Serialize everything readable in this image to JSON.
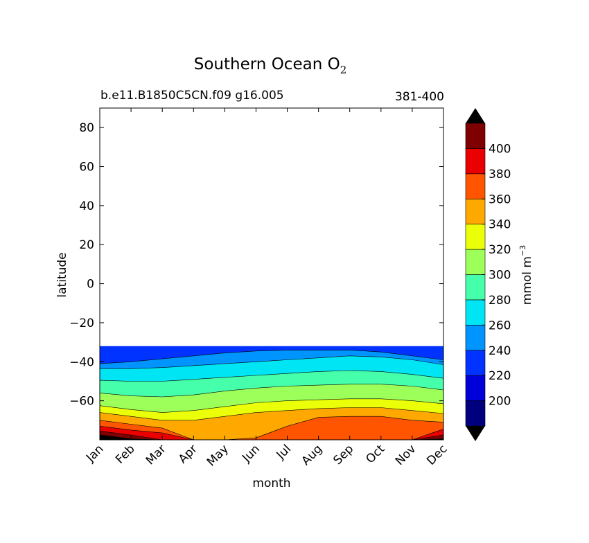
{
  "chart_data": {
    "type": "heatmap",
    "title": "Southern Ocean O",
    "title_subscript": "2",
    "subtitle_left": "b.e11.B1850C5CN.f09 g16.005",
    "subtitle_right": "381-400",
    "xlabel": "month",
    "ylabel": "latitude",
    "x_categories": [
      "Jan",
      "Feb",
      "Mar",
      "Apr",
      "May",
      "Jun",
      "Jul",
      "Aug",
      "Sep",
      "Oct",
      "Nov",
      "Dec"
    ],
    "y_ticks": [
      80,
      60,
      40,
      20,
      0,
      -20,
      -40,
      -60
    ],
    "y_tick_labels": [
      "80",
      "60",
      "40",
      "20",
      "0",
      "−20",
      "−40",
      "−60"
    ],
    "ylim": [
      -80,
      90
    ],
    "data_lat_range": [
      -79,
      -32
    ],
    "grid": false,
    "colorbar": {
      "label": "mmol m",
      "label_exponent": "−3",
      "levels": [
        180,
        200,
        220,
        240,
        260,
        280,
        300,
        320,
        340,
        360,
        380,
        400,
        420
      ],
      "tick_values": [
        200,
        220,
        240,
        260,
        280,
        300,
        320,
        340,
        360,
        380,
        400
      ],
      "tick_labels": [
        "200",
        "220",
        "240",
        "260",
        "280",
        "300",
        "320",
        "340",
        "360",
        "380",
        "400"
      ],
      "colors": [
        "#00007f",
        "#0000d9",
        "#0033ff",
        "#0094ff",
        "#00e5f3",
        "#46ffaa",
        "#9dff59",
        "#ebff08",
        "#ffa800",
        "#ff5500",
        "#ea0000",
        "#7f0000"
      ],
      "under_color": "#000000",
      "over_color": "#000000",
      "extend": "both"
    },
    "contour_boundaries": [
      {
        "level": 240,
        "lats": [
          -41,
          -40,
          -38.5,
          -37,
          -35.5,
          -34.5,
          -34,
          -34,
          -34,
          -35,
          -37,
          -39
        ]
      },
      {
        "level": 260,
        "lats": [
          -43.5,
          -43.5,
          -43,
          -42,
          -41,
          -40,
          -39,
          -38,
          -37,
          -37.5,
          -39,
          -41.5
        ]
      },
      {
        "level": 280,
        "lats": [
          -49.5,
          -50,
          -50,
          -49,
          -48,
          -47,
          -46,
          -45,
          -44.5,
          -45,
          -46.5,
          -48.5
        ]
      },
      {
        "level": 300,
        "lats": [
          -56,
          -57.5,
          -58,
          -57,
          -55,
          -53.5,
          -52.5,
          -52,
          -51.5,
          -51.5,
          -52.5,
          -54.5
        ]
      },
      {
        "level": 320,
        "lats": [
          -62.5,
          -64.5,
          -66,
          -65,
          -63,
          -61,
          -60,
          -59.5,
          -59,
          -59,
          -60,
          -61.5
        ]
      },
      {
        "level": 340,
        "lats": [
          -66,
          -68,
          -70,
          -70,
          -68,
          -66,
          -65,
          -64,
          -63.5,
          -63.5,
          -65,
          -66.5
        ]
      },
      {
        "level": 360,
        "lats": [
          -70,
          -72,
          -74,
          -80,
          -80,
          -79,
          -73,
          -68.5,
          -68,
          -68,
          -70,
          -71
        ]
      },
      {
        "level": 380,
        "lats": [
          -73,
          -75,
          -76.5,
          -80,
          -80,
          -80,
          -80,
          -80,
          -80,
          -80,
          -80,
          -74.5
        ]
      },
      {
        "level": 400,
        "lats": [
          -75.5,
          -77.5,
          -80,
          -80,
          -80,
          -80,
          -80,
          -80,
          -80,
          -80,
          -80,
          -77.5
        ]
      },
      {
        "level": 420,
        "lats": [
          -77.5,
          -79.5,
          -80,
          -80,
          -80,
          -80,
          -80,
          -80,
          -80,
          -80,
          -80,
          -79.5
        ]
      }
    ]
  }
}
